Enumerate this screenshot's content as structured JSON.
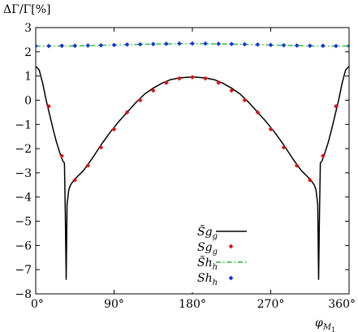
{
  "chart_data": {
    "type": "line",
    "ylabel": "ΔΓ/Γ[%]",
    "xlabel": "φ_M1",
    "xlim": [
      0,
      360
    ],
    "ylim": [
      -8,
      3
    ],
    "x_ticks": [
      0,
      90,
      180,
      270,
      360
    ],
    "x_tick_labels": [
      "0°",
      "90°",
      "180°",
      "270°",
      "360°"
    ],
    "y_ticks": [
      3,
      2,
      1,
      0,
      -1,
      -2,
      -3,
      -4,
      -5,
      -6,
      -7,
      -8
    ],
    "y_tick_labels": [
      "3",
      "2",
      "1",
      "0",
      "−1",
      "−2",
      "−3",
      "−4",
      "−5",
      "−6",
      "−7",
      "−8"
    ],
    "grid": false,
    "legend_position": "bottom-center",
    "series": [
      {
        "name": "S̃g",
        "style": "line",
        "color": "#000000",
        "x": [
          0,
          4,
          8,
          12,
          16,
          20,
          24,
          28,
          31,
          33,
          34,
          35,
          36,
          38,
          40,
          44,
          48,
          55,
          65,
          75,
          85,
          95,
          105,
          115,
          125,
          135,
          145,
          155,
          165,
          175,
          180,
          185,
          195,
          205,
          215,
          225,
          235,
          245,
          255,
          265,
          275,
          285,
          295,
          305,
          312,
          316,
          320,
          322,
          324,
          325,
          326,
          327,
          329,
          332,
          336,
          340,
          344,
          348,
          352,
          356,
          360
        ],
        "values": [
          1.4,
          1.25,
          0.7,
          0.0,
          -0.6,
          -1.2,
          -1.75,
          -2.2,
          -2.5,
          -2.6,
          -4.7,
          -7.4,
          -4.3,
          -3.7,
          -3.5,
          -3.3,
          -3.15,
          -2.9,
          -2.4,
          -1.85,
          -1.35,
          -0.9,
          -0.5,
          -0.1,
          0.25,
          0.5,
          0.7,
          0.85,
          0.92,
          0.95,
          0.96,
          0.95,
          0.92,
          0.85,
          0.7,
          0.5,
          0.25,
          -0.1,
          -0.5,
          -0.9,
          -1.35,
          -1.85,
          -2.4,
          -2.9,
          -3.15,
          -3.3,
          -3.5,
          -3.7,
          -4.3,
          -7.4,
          -4.7,
          -2.6,
          -2.5,
          -2.2,
          -1.75,
          -1.2,
          -0.6,
          0.0,
          0.7,
          1.25,
          1.4
        ]
      },
      {
        "name": "Sg",
        "style": "points",
        "color": "#dd1111",
        "x": [
          15,
          30,
          45,
          60,
          75,
          90,
          105,
          120,
          135,
          150,
          165,
          180,
          195,
          210,
          225,
          240,
          255,
          270,
          285,
          300,
          315,
          330,
          345
        ],
        "values": [
          -0.25,
          -2.3,
          -3.3,
          -2.7,
          -1.95,
          -1.2,
          -0.5,
          0.0,
          0.4,
          0.72,
          0.9,
          0.95,
          0.9,
          0.72,
          0.4,
          0.0,
          -0.5,
          -1.2,
          -1.95,
          -2.7,
          -3.3,
          -2.3,
          -0.25
        ]
      },
      {
        "name": "S̃h",
        "style": "dash-dot",
        "color": "#22bb22",
        "x": [
          0,
          45,
          90,
          135,
          180,
          225,
          270,
          315,
          360
        ],
        "values": [
          2.24,
          2.24,
          2.28,
          2.32,
          2.34,
          2.32,
          2.28,
          2.24,
          2.24
        ]
      },
      {
        "name": "Sh",
        "style": "points",
        "color": "#1133dd",
        "x": [
          0,
          15,
          30,
          45,
          60,
          75,
          90,
          105,
          120,
          135,
          150,
          165,
          180,
          195,
          210,
          225,
          240,
          255,
          270,
          285,
          300,
          315,
          330,
          345,
          360
        ],
        "values": [
          2.24,
          2.24,
          2.25,
          2.25,
          2.26,
          2.27,
          2.28,
          2.3,
          2.31,
          2.32,
          2.33,
          2.34,
          2.34,
          2.34,
          2.33,
          2.32,
          2.31,
          2.3,
          2.28,
          2.27,
          2.26,
          2.25,
          2.25,
          2.24,
          2.24
        ]
      }
    ]
  }
}
